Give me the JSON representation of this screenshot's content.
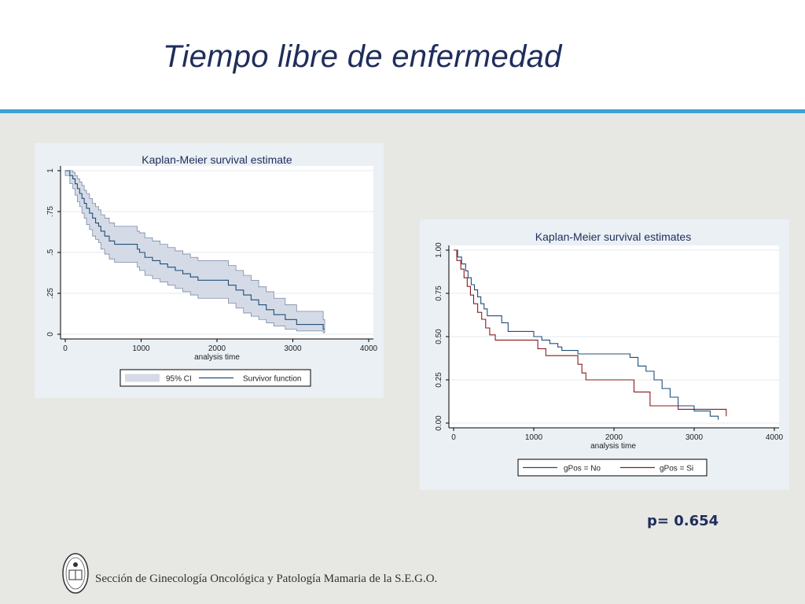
{
  "slide": {
    "title": "Tiempo libre de enfermedad",
    "p_value_text": "p= 0.654",
    "footer_text": "Sección de Ginecología Oncológica y Patología Mamaria de la S.E.G.O."
  },
  "colors": {
    "title": "#1f2d5c",
    "rule": "#3fa2d6",
    "series_no": "#1f4e79",
    "series_si": "#8b1a1a",
    "ci_band": "#d5dbe6"
  },
  "chart_data": [
    {
      "type": "line",
      "title": "Kaplan-Meier survival estimate",
      "xlabel": "analysis time",
      "ylabel": "",
      "xlim": [
        0,
        4000
      ],
      "ylim": [
        0,
        1
      ],
      "x_ticks": [
        0,
        1000,
        2000,
        3000,
        4000
      ],
      "y_ticks": [
        0,
        0.25,
        0.5,
        0.75,
        1
      ],
      "y_tick_labels": [
        "0",
        ".25",
        ".5",
        ".75",
        "1"
      ],
      "grid": true,
      "legend": "bottom",
      "legend_entries": [
        "95% CI",
        "Survivor function"
      ],
      "series": [
        {
          "name": "Survivor function",
          "step": true,
          "points": [
            [
              0,
              1
            ],
            [
              60,
              0.97
            ],
            [
              100,
              0.95
            ],
            [
              130,
              0.92
            ],
            [
              160,
              0.89
            ],
            [
              190,
              0.86
            ],
            [
              220,
              0.83
            ],
            [
              250,
              0.8
            ],
            [
              280,
              0.77
            ],
            [
              320,
              0.74
            ],
            [
              360,
              0.71
            ],
            [
              400,
              0.68
            ],
            [
              440,
              0.66
            ],
            [
              470,
              0.63
            ],
            [
              520,
              0.6
            ],
            [
              580,
              0.57
            ],
            [
              650,
              0.55
            ],
            [
              950,
              0.52
            ],
            [
              980,
              0.5
            ],
            [
              1050,
              0.47
            ],
            [
              1150,
              0.45
            ],
            [
              1250,
              0.43
            ],
            [
              1350,
              0.41
            ],
            [
              1450,
              0.39
            ],
            [
              1550,
              0.37
            ],
            [
              1650,
              0.35
            ],
            [
              1750,
              0.33
            ],
            [
              2150,
              0.3
            ],
            [
              2250,
              0.27
            ],
            [
              2350,
              0.24
            ],
            [
              2450,
              0.21
            ],
            [
              2550,
              0.18
            ],
            [
              2650,
              0.15
            ],
            [
              2750,
              0.12
            ],
            [
              2900,
              0.09
            ],
            [
              3050,
              0.06
            ],
            [
              3400,
              0.03
            ]
          ],
          "x_end": 3420
        }
      ],
      "ci_upper": [
        [
          0,
          1
        ],
        [
          60,
          1
        ],
        [
          100,
          0.99
        ],
        [
          130,
          0.97
        ],
        [
          160,
          0.95
        ],
        [
          190,
          0.93
        ],
        [
          220,
          0.91
        ],
        [
          250,
          0.88
        ],
        [
          280,
          0.86
        ],
        [
          320,
          0.83
        ],
        [
          360,
          0.8
        ],
        [
          400,
          0.78
        ],
        [
          440,
          0.76
        ],
        [
          470,
          0.73
        ],
        [
          520,
          0.71
        ],
        [
          580,
          0.68
        ],
        [
          650,
          0.66
        ],
        [
          950,
          0.63
        ],
        [
          980,
          0.62
        ],
        [
          1050,
          0.59
        ],
        [
          1150,
          0.57
        ],
        [
          1250,
          0.55
        ],
        [
          1350,
          0.53
        ],
        [
          1450,
          0.51
        ],
        [
          1550,
          0.49
        ],
        [
          1650,
          0.47
        ],
        [
          1750,
          0.45
        ],
        [
          2150,
          0.42
        ],
        [
          2250,
          0.39
        ],
        [
          2350,
          0.36
        ],
        [
          2450,
          0.33
        ],
        [
          2550,
          0.29
        ],
        [
          2650,
          0.26
        ],
        [
          2750,
          0.22
        ],
        [
          2900,
          0.18
        ],
        [
          3050,
          0.14
        ],
        [
          3400,
          0.09
        ]
      ],
      "ci_lower": [
        [
          0,
          0.97
        ],
        [
          60,
          0.92
        ],
        [
          100,
          0.89
        ],
        [
          130,
          0.85
        ],
        [
          160,
          0.81
        ],
        [
          190,
          0.78
        ],
        [
          220,
          0.74
        ],
        [
          250,
          0.71
        ],
        [
          280,
          0.67
        ],
        [
          320,
          0.64
        ],
        [
          360,
          0.6
        ],
        [
          400,
          0.58
        ],
        [
          440,
          0.56
        ],
        [
          470,
          0.52
        ],
        [
          520,
          0.49
        ],
        [
          580,
          0.46
        ],
        [
          650,
          0.44
        ],
        [
          950,
          0.41
        ],
        [
          980,
          0.39
        ],
        [
          1050,
          0.36
        ],
        [
          1150,
          0.34
        ],
        [
          1250,
          0.32
        ],
        [
          1350,
          0.3
        ],
        [
          1450,
          0.28
        ],
        [
          1550,
          0.26
        ],
        [
          1650,
          0.24
        ],
        [
          1750,
          0.22
        ],
        [
          2150,
          0.19
        ],
        [
          2250,
          0.16
        ],
        [
          2350,
          0.13
        ],
        [
          2450,
          0.11
        ],
        [
          2550,
          0.09
        ],
        [
          2650,
          0.07
        ],
        [
          2750,
          0.05
        ],
        [
          2900,
          0.03
        ],
        [
          3050,
          0.02
        ],
        [
          3400,
          0.01
        ]
      ]
    },
    {
      "type": "line",
      "title": "Kaplan-Meier survival estimates",
      "xlabel": "analysis time",
      "ylabel": "",
      "xlim": [
        0,
        4000
      ],
      "ylim": [
        0,
        1
      ],
      "x_ticks": [
        0,
        1000,
        2000,
        3000,
        4000
      ],
      "y_ticks": [
        0,
        0.25,
        0.5,
        0.75,
        1
      ],
      "y_tick_labels": [
        "0.00",
        "0.25",
        "0.50",
        "0.75",
        "1.00"
      ],
      "grid": true,
      "legend": "bottom",
      "legend_entries": [
        "gPos = No",
        "gPos = Si"
      ],
      "series": [
        {
          "name": "gPos = No",
          "step": true,
          "points": [
            [
              0,
              1
            ],
            [
              50,
              0.96
            ],
            [
              100,
              0.92
            ],
            [
              150,
              0.88
            ],
            [
              180,
              0.84
            ],
            [
              220,
              0.8
            ],
            [
              260,
              0.77
            ],
            [
              300,
              0.73
            ],
            [
              340,
              0.69
            ],
            [
              380,
              0.66
            ],
            [
              420,
              0.62
            ],
            [
              600,
              0.58
            ],
            [
              680,
              0.55
            ],
            [
              680,
              0.53
            ],
            [
              1000,
              0.5
            ],
            [
              1100,
              0.48
            ],
            [
              1200,
              0.46
            ],
            [
              1300,
              0.44
            ],
            [
              1350,
              0.42
            ],
            [
              1550,
              0.4
            ],
            [
              2200,
              0.38
            ],
            [
              2300,
              0.33
            ],
            [
              2400,
              0.3
            ],
            [
              2500,
              0.25
            ],
            [
              2600,
              0.2
            ],
            [
              2700,
              0.15
            ],
            [
              2800,
              0.1
            ],
            [
              3000,
              0.07
            ],
            [
              3200,
              0.04
            ],
            [
              3300,
              0.02
            ]
          ],
          "x_end": 3300
        },
        {
          "name": "gPos = Si",
          "step": true,
          "points": [
            [
              0,
              1
            ],
            [
              40,
              0.94
            ],
            [
              90,
              0.89
            ],
            [
              130,
              0.84
            ],
            [
              170,
              0.79
            ],
            [
              210,
              0.74
            ],
            [
              250,
              0.69
            ],
            [
              300,
              0.64
            ],
            [
              350,
              0.6
            ],
            [
              400,
              0.55
            ],
            [
              450,
              0.51
            ],
            [
              520,
              0.48
            ],
            [
              1050,
              0.43
            ],
            [
              1150,
              0.39
            ],
            [
              1550,
              0.34
            ],
            [
              1600,
              0.29
            ],
            [
              1650,
              0.25
            ],
            [
              2250,
              0.18
            ],
            [
              2450,
              0.1
            ],
            [
              2800,
              0.08
            ],
            [
              3400,
              0.04
            ]
          ],
          "x_end": 3400
        }
      ]
    }
  ]
}
